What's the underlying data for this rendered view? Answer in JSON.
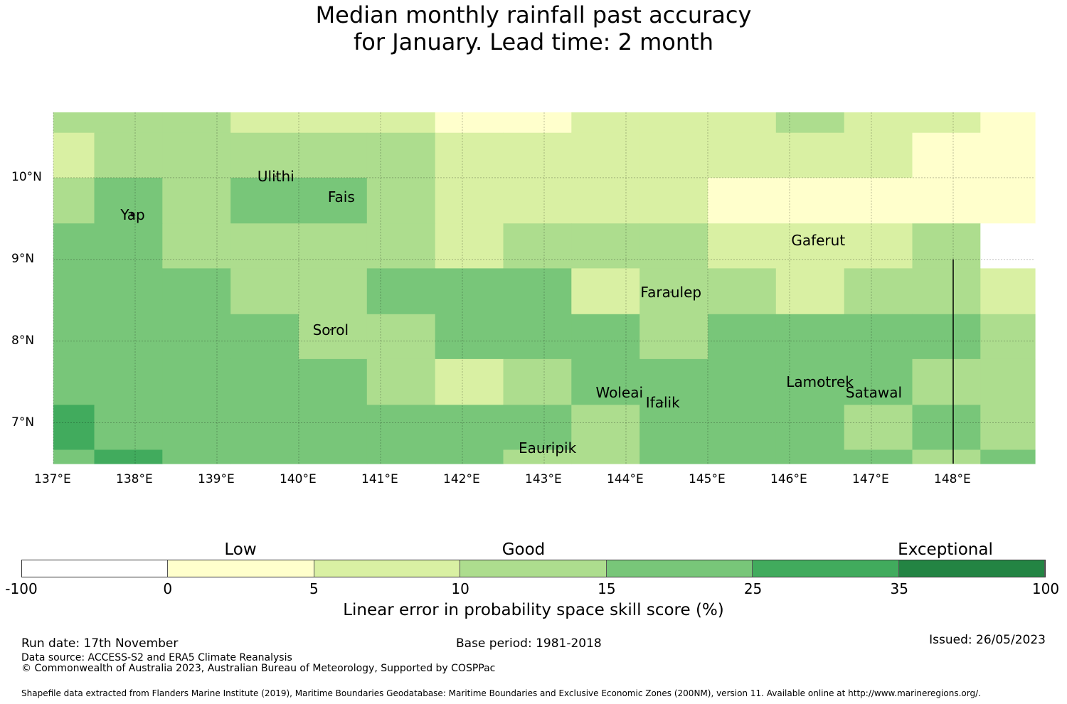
{
  "title": {
    "line1": "Median monthly rainfall past accuracy",
    "line2": "for January. Lead time: 2 month"
  },
  "map": {
    "lon_range": [
      137.0,
      149.0
    ],
    "lat_range": [
      6.5,
      10.8
    ],
    "x_ticks": [
      "137°E",
      "138°E",
      "139°E",
      "140°E",
      "141°E",
      "142°E",
      "143°E",
      "144°E",
      "145°E",
      "146°E",
      "147°E",
      "148°E"
    ],
    "x_tick_values": [
      137,
      138,
      139,
      140,
      141,
      142,
      143,
      144,
      145,
      146,
      147,
      148
    ],
    "y_ticks": [
      "10°N",
      "9°N",
      "8°N",
      "7°N"
    ],
    "y_tick_values": [
      10,
      9,
      8,
      7
    ],
    "cell_grid_lon_edges": [
      137.0,
      137.5,
      138.333,
      139.167,
      140.0,
      140.833,
      141.667,
      142.5,
      143.333,
      144.167,
      145.0,
      145.833,
      146.667,
      147.5,
      148.333,
      149.0
    ],
    "cell_grid_lat_edges": [
      10.8,
      10.55,
      10.0,
      9.44,
      8.89,
      8.33,
      7.78,
      7.22,
      6.67,
      6.5
    ],
    "skill_category_rows": [
      [
        3,
        3,
        3,
        2,
        2,
        2,
        1,
        1,
        2,
        2,
        2,
        3,
        2,
        2,
        1
      ],
      [
        2,
        3,
        3,
        3,
        3,
        3,
        2,
        2,
        2,
        2,
        2,
        2,
        2,
        1,
        1
      ],
      [
        3,
        4,
        3,
        4,
        4,
        3,
        2,
        2,
        2,
        2,
        1,
        1,
        1,
        1,
        1
      ],
      [
        4,
        4,
        3,
        3,
        3,
        3,
        2,
        3,
        3,
        3,
        2,
        2,
        2,
        3,
        0
      ],
      [
        4,
        4,
        4,
        3,
        3,
        4,
        4,
        4,
        2,
        3,
        3,
        2,
        3,
        3,
        2
      ],
      [
        4,
        4,
        4,
        4,
        3,
        3,
        4,
        4,
        4,
        3,
        4,
        4,
        4,
        4,
        3
      ],
      [
        4,
        4,
        4,
        4,
        4,
        3,
        2,
        3,
        4,
        4,
        4,
        4,
        4,
        3,
        3
      ],
      [
        5,
        4,
        4,
        4,
        4,
        4,
        4,
        4,
        3,
        4,
        4,
        4,
        3,
        4,
        3
      ],
      [
        4,
        5,
        4,
        4,
        4,
        4,
        4,
        3,
        3,
        4,
        4,
        4,
        4,
        3,
        4
      ]
    ],
    "boundary_line_lon": 148.0,
    "boundary_line_lat": [
      9.0,
      6.5
    ],
    "places": [
      {
        "name": "Yap",
        "lon": 137.97,
        "lat": 9.55
      },
      {
        "name": "Ulithi",
        "lon": 139.72,
        "lat": 10.02
      },
      {
        "name": "Fais",
        "lon": 140.52,
        "lat": 9.76
      },
      {
        "name": "Gaferut",
        "lon": 146.35,
        "lat": 9.23
      },
      {
        "name": "Faraulep",
        "lon": 144.55,
        "lat": 8.6
      },
      {
        "name": "Sorol",
        "lon": 140.39,
        "lat": 8.14
      },
      {
        "name": "Woleai",
        "lon": 143.92,
        "lat": 7.37
      },
      {
        "name": "Ifalik",
        "lon": 144.45,
        "lat": 7.25
      },
      {
        "name": "Lamotrek",
        "lon": 146.37,
        "lat": 7.5
      },
      {
        "name": "Satawal",
        "lon": 147.03,
        "lat": 7.37
      },
      {
        "name": "Eauripik",
        "lon": 143.04,
        "lat": 6.69
      }
    ],
    "place_labels": {
      "Yap": "Yap",
      "Ulithi": "Ulithi",
      "Fais": "Fais",
      "Gaferut": "Gaferut",
      "Faraulep": "Faraulep",
      "Sorol": "Sorol",
      "Woleai": "Woleai",
      "Ifalik": "Ifalik",
      "Lamotrek": "Lamotrek",
      "Satawal": "Satawal",
      "Eauripik": "Eauripik"
    }
  },
  "colorbar": {
    "categories": [
      "Low",
      "Good",
      "Exceptional"
    ],
    "boundaries": [
      "-100",
      "0",
      "5",
      "10",
      "15",
      "25",
      "35",
      "100"
    ],
    "colors": [
      "#ffffff",
      "#ffffcc",
      "#d9f0a3",
      "#addd8e",
      "#78c679",
      "#41ab5d",
      "#238443"
    ],
    "label": "Linear error in probability space skill score (%)"
  },
  "footer": {
    "run_date": "Run date: 17th November",
    "base_period": "Base period: 1981-2018",
    "issued": "Issued: 26/05/2023",
    "data_source": "Data source: ACCESS-S2 and ERA5 Climate Reanalysis",
    "copyright": "© Commonwealth of Australia 2023, Australian Bureau of Meteorology, Supported by COSPPac",
    "shapefile": "Shapefile data extracted from Flanders Marine Institute (2019), Maritime Boundaries Geodatabase: Maritime Boundaries and Exclusive Economic Zones (200NM), version 11. Available online at http://www.marineregions.org/."
  }
}
